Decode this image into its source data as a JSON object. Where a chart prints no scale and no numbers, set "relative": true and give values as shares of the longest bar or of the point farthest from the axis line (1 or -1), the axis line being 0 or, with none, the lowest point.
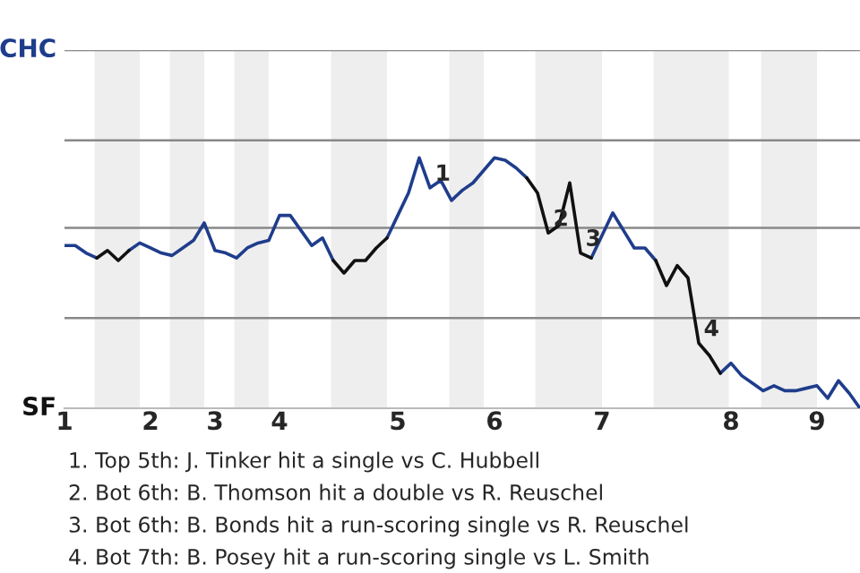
{
  "chart_data": {
    "type": "line",
    "relative": true,
    "categories": [
      "1",
      null,
      null,
      null,
      null,
      null,
      null,
      null,
      "2",
      null,
      null,
      null,
      null,
      null,
      "3",
      null,
      null,
      null,
      null,
      null,
      "4",
      null,
      null,
      null,
      null,
      null,
      null,
      null,
      null,
      null,
      null,
      "5",
      null,
      null,
      null,
      null,
      null,
      null,
      null,
      null,
      "6",
      null,
      null,
      null,
      null,
      null,
      null,
      null,
      null,
      null,
      "7",
      null,
      null,
      null,
      null,
      null,
      null,
      null,
      null,
      null,
      null,
      null,
      "8",
      null,
      null,
      null,
      null,
      null,
      null,
      null,
      "9",
      null,
      null,
      null,
      null
    ],
    "series": [
      {
        "color": "#1f3d8c",
        "values": [
          0.65,
          0.65,
          0.62,
          0.6,
          null,
          null,
          0.63,
          0.66,
          0.64,
          0.62,
          0.61,
          0.64,
          0.67,
          0.74,
          0.63,
          0.62,
          0.6,
          0.64,
          0.66,
          0.67,
          0.77,
          0.77,
          0.71,
          0.65,
          0.68,
          0.59,
          null,
          null,
          null,
          null,
          0.68,
          0.77,
          0.86,
          1,
          0.88,
          0.91,
          0.83,
          0.87,
          0.9,
          0.95,
          1,
          0.99,
          0.96,
          0.92,
          null,
          null,
          null,
          null,
          null,
          0.6,
          0.69,
          0.78,
          0.71,
          0.64,
          0.64,
          0.59,
          null,
          null,
          null,
          null,
          null,
          0.14,
          0.18,
          0.13,
          0.1,
          0.07,
          0.09,
          0.07,
          0.07,
          0.08,
          0.09,
          0.04,
          0.11,
          0.06,
          0
        ]
      },
      {
        "color": "#111111",
        "values": [
          null,
          null,
          null,
          0.6,
          0.63,
          0.59,
          0.63,
          null,
          null,
          null,
          null,
          null,
          null,
          null,
          null,
          null,
          null,
          null,
          null,
          null,
          null,
          null,
          null,
          null,
          null,
          0.59,
          0.54,
          0.59,
          0.59,
          0.64,
          0.68,
          null,
          null,
          null,
          null,
          null,
          null,
          null,
          null,
          null,
          null,
          null,
          null,
          0.92,
          0.86,
          0.7,
          0.73,
          0.9,
          0.62,
          0.6,
          null,
          null,
          null,
          null,
          null,
          0.59,
          0.49,
          0.57,
          0.52,
          0.26,
          0.21,
          0.14,
          null,
          null,
          null,
          null,
          null,
          null,
          null,
          null,
          null,
          null,
          null,
          null,
          null
        ]
      }
    ],
    "marker": "none",
    "line_style": "solid",
    "ref_lines": [
      {
        "axis": "y",
        "value": 0.36,
        "color": "#888888"
      },
      {
        "axis": "y",
        "value": 0.72,
        "color": "#888888"
      },
      {
        "axis": "y",
        "value": 1.07,
        "color": "#888888"
      },
      {
        "axis": "y",
        "value": 1.43,
        "color": "#888888"
      }
    ],
    "annotations": [
      "CHC",
      "SF",
      {
        "text": "1",
        "y": 0.88
      },
      {
        "text": "2",
        "y": 0.7
      },
      {
        "text": "3",
        "y": 0.62
      },
      {
        "text": "4",
        "y": 0.26
      },
      "1. Top 5th: J. Tinker hit a single vs C. Hubbell",
      "2. Bot 6th: B. Thomson hit a double vs R. Reuschel",
      "3. Bot 6th: B. Bonds hit a run-scoring single vs R. Reuschel",
      "4. Bot 7th: B. Posey hit a run-scoring single vs L. Smith"
    ]
  }
}
